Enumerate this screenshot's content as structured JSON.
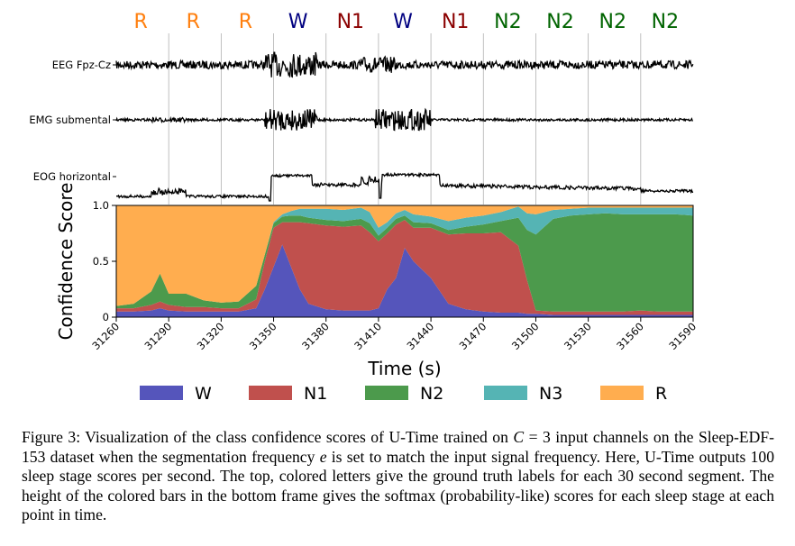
{
  "figure": {
    "stage_labels": [
      "R",
      "R",
      "R",
      "W",
      "N1",
      "W",
      "N1",
      "N2",
      "N2",
      "N2",
      "N2"
    ],
    "stage_label_colors": {
      "R": "#ff7f0e",
      "W": "#000080",
      "N1": "#8b0000",
      "N2": "#006400"
    },
    "channels": [
      "EEG Fpz-Cz",
      "EMG submental",
      "EOG horizontal"
    ],
    "chart_data": {
      "type": "area",
      "stacked": true,
      "xlabel": "Time (s)",
      "ylabel": "Confidence Score",
      "xlim": [
        31260,
        31590
      ],
      "ylim": [
        0,
        1.0
      ],
      "x_ticks": [
        31260,
        31290,
        31320,
        31350,
        31380,
        31410,
        31440,
        31470,
        31500,
        31530,
        31560,
        31590
      ],
      "x_tick_labels": [
        "31260",
        "31290",
        "31320",
        "31350",
        "31380",
        "31410",
        "31440",
        "31470",
        "31500",
        "31530",
        "31560",
        "31590"
      ],
      "y_ticks": [
        0,
        0.5,
        1.0
      ],
      "y_tick_labels": [
        "0",
        "0.5",
        "1.0"
      ],
      "grid": "vertical",
      "x": [
        31260,
        31270,
        31280,
        31285,
        31290,
        31300,
        31310,
        31320,
        31330,
        31340,
        31345,
        31350,
        31355,
        31360,
        31365,
        31370,
        31380,
        31390,
        31400,
        31405,
        31410,
        31415,
        31420,
        31425,
        31430,
        31440,
        31450,
        31460,
        31470,
        31480,
        31490,
        31495,
        31500,
        31510,
        31520,
        31530,
        31540,
        31550,
        31560,
        31570,
        31580,
        31590
      ],
      "series": [
        {
          "name": "W",
          "color": "#5555bb",
          "values": [
            0.05,
            0.05,
            0.06,
            0.08,
            0.06,
            0.05,
            0.05,
            0.05,
            0.05,
            0.08,
            0.25,
            0.45,
            0.65,
            0.45,
            0.25,
            0.12,
            0.07,
            0.06,
            0.06,
            0.06,
            0.08,
            0.25,
            0.35,
            0.62,
            0.5,
            0.35,
            0.12,
            0.07,
            0.05,
            0.04,
            0.04,
            0.03,
            0.03,
            0.02,
            0.02,
            0.02,
            0.02,
            0.02,
            0.02,
            0.02,
            0.02,
            0.02
          ]
        },
        {
          "name": "N1",
          "color": "#c0504d",
          "values": [
            0.03,
            0.03,
            0.05,
            0.06,
            0.05,
            0.04,
            0.04,
            0.03,
            0.03,
            0.08,
            0.25,
            0.35,
            0.2,
            0.4,
            0.6,
            0.72,
            0.75,
            0.75,
            0.76,
            0.7,
            0.6,
            0.5,
            0.48,
            0.25,
            0.3,
            0.45,
            0.62,
            0.68,
            0.7,
            0.72,
            0.6,
            0.3,
            0.03,
            0.03,
            0.03,
            0.03,
            0.03,
            0.03,
            0.04,
            0.03,
            0.03,
            0.03
          ]
        },
        {
          "name": "N2",
          "color": "#4c9a4c",
          "values": [
            0.02,
            0.04,
            0.12,
            0.25,
            0.1,
            0.12,
            0.06,
            0.05,
            0.06,
            0.12,
            0.06,
            0.04,
            0.05,
            0.06,
            0.06,
            0.05,
            0.05,
            0.05,
            0.06,
            0.08,
            0.05,
            0.05,
            0.05,
            0.04,
            0.05,
            0.04,
            0.04,
            0.06,
            0.08,
            0.1,
            0.25,
            0.45,
            0.68,
            0.83,
            0.86,
            0.87,
            0.88,
            0.87,
            0.86,
            0.87,
            0.87,
            0.86
          ]
        },
        {
          "name": "N3",
          "color": "#55b4b4",
          "values": [
            0.0,
            0.0,
            0.0,
            0.0,
            0.0,
            0.0,
            0.0,
            0.0,
            0.0,
            0.0,
            0.0,
            0.01,
            0.02,
            0.04,
            0.06,
            0.08,
            0.1,
            0.1,
            0.1,
            0.1,
            0.07,
            0.05,
            0.05,
            0.05,
            0.07,
            0.06,
            0.08,
            0.08,
            0.08,
            0.08,
            0.1,
            0.15,
            0.18,
            0.08,
            0.06,
            0.06,
            0.05,
            0.06,
            0.06,
            0.06,
            0.06,
            0.07
          ]
        },
        {
          "name": "R",
          "color": "#ffad4f",
          "values": [
            0.9,
            0.88,
            0.77,
            0.61,
            0.79,
            0.79,
            0.85,
            0.87,
            0.86,
            0.72,
            0.44,
            0.15,
            0.08,
            0.05,
            0.03,
            0.03,
            0.03,
            0.04,
            0.02,
            0.06,
            0.2,
            0.15,
            0.07,
            0.04,
            0.08,
            0.1,
            0.14,
            0.11,
            0.09,
            0.06,
            0.01,
            0.07,
            0.08,
            0.04,
            0.03,
            0.02,
            0.02,
            0.02,
            0.02,
            0.02,
            0.02,
            0.02
          ]
        }
      ],
      "legend": [
        "W",
        "N1",
        "N2",
        "N3",
        "R"
      ],
      "legend_placement": "bottom"
    }
  },
  "caption": {
    "label": "Figure 3:",
    "text_a": " Visualization of the class confidence scores of U-Time trained on ",
    "var_c": "C",
    "text_b": " = 3 input channels on the Sleep-EDF-153 dataset when the segmentation frequency ",
    "var_e": "e",
    "text_c": " is set to match the input signal frequency. Here, U-Time outputs 100 sleep stage scores per second. The top, colored letters give the ground truth labels for each 30 second segment. The height of the colored bars in the bottom frame gives the softmax (probability-like) scores for each sleep stage at each point in time."
  }
}
